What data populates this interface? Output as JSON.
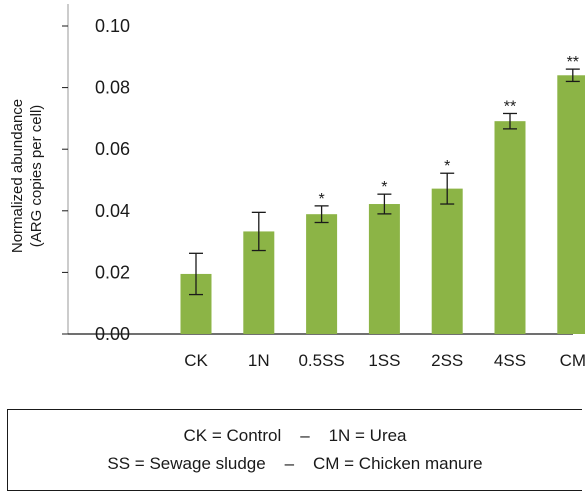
{
  "chart_data": {
    "type": "bar",
    "title": "",
    "xlabel": "",
    "ylabel_line1": "Normalized abundance",
    "ylabel_line2": "(ARG copies per cell)",
    "categories": [
      "CK",
      "1N",
      "0.5SS",
      "1SS",
      "2SS",
      "4SS",
      "CM"
    ],
    "values": [
      0.0195,
      0.0333,
      0.0389,
      0.0422,
      0.0472,
      0.0691,
      0.084
    ],
    "error": [
      0.0067,
      0.0062,
      0.0027,
      0.0032,
      0.005,
      0.0025,
      0.002
    ],
    "significance": [
      "",
      "",
      "*",
      "*",
      "*",
      "**",
      "**"
    ],
    "ylim": [
      0,
      0.1
    ],
    "yticks": [
      0.0,
      0.02,
      0.04,
      0.06,
      0.08,
      0.1
    ],
    "ytick_labels": [
      "0.00",
      "0.02",
      "0.04",
      "0.06",
      "0.08",
      "0.10"
    ],
    "bar_color": "#8cb446",
    "grid": false
  },
  "legend": {
    "line1_left": "CK = Control",
    "line1_sep": "–",
    "line1_right": "1N = Urea",
    "line2_left": "SS = Sewage sludge",
    "line2_sep": "–",
    "line2_right": "CM = Chicken manure"
  }
}
